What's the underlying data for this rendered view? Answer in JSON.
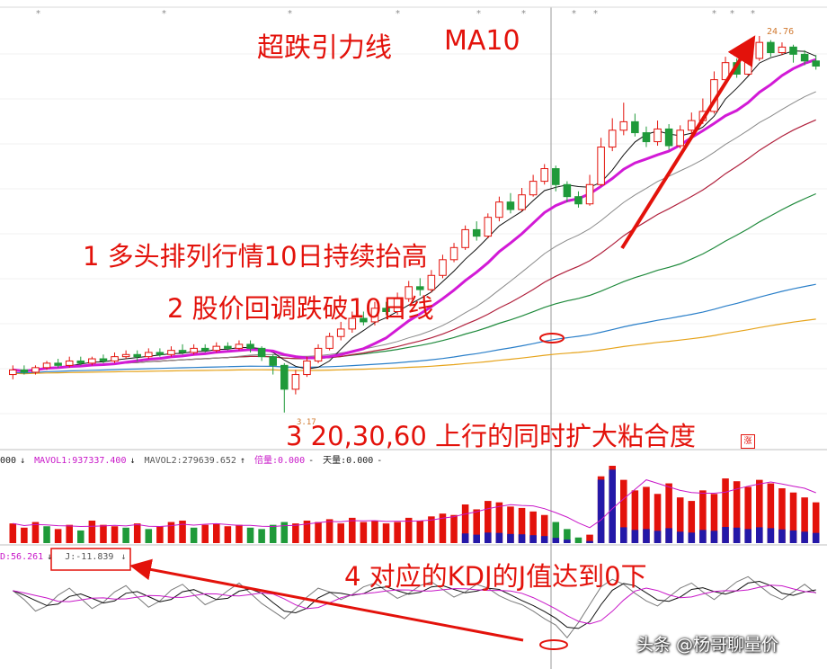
{
  "colors": {
    "up": "#e3120b",
    "down": "#1f9a3a",
    "ma5": "#111111",
    "ma10": "#d21ad6",
    "ma20": "#8a8a8a",
    "ma30": "#b0203c",
    "ma60": "#1f8a3c",
    "ma120": "#2a7fc9",
    "ma250": "#e6a31a",
    "vol_blue": "#2418a8",
    "annotation": "#e3120b"
  },
  "annotations": {
    "title": "超跌引力线",
    "ma": "MA10",
    "point1": "1 多头排列行情10日持续抬高",
    "point2": "2 股价回调跌破10日线",
    "point3": "3 20,30,60 上行的同时扩大粘合度",
    "point4": "4 对应的KDJ的J值达到0下"
  },
  "price_labels": {
    "high": "24.76",
    "low": "3.17"
  },
  "volume_indicator": {
    "first": "000",
    "mavol1": "MAVOL1:937337.400",
    "mavol2": "MAVOL2:279639.652",
    "beiliang": "倍量:0.000",
    "tianliang": "天量:0.000"
  },
  "kdj_indicator": {
    "d": "D:56.261",
    "j": "J:-11.839"
  },
  "watermark": "头条 @杨哥聊量价",
  "stamp": "涨",
  "chart_data": {
    "type": "candlestick",
    "panels": [
      "price",
      "volume",
      "kdj"
    ],
    "series_note": "daily candles with MA5, MA10, MA20, MA30, MA60, MA120, MA250 overlays",
    "candles": [
      {
        "o": 3.9,
        "c": 4.0,
        "h": 4.1,
        "l": 3.8
      },
      {
        "o": 4.0,
        "c": 3.95,
        "h": 4.1,
        "l": 3.9
      },
      {
        "o": 3.95,
        "c": 4.05,
        "h": 4.1,
        "l": 3.9
      },
      {
        "o": 4.05,
        "c": 4.15,
        "h": 4.2,
        "l": 4.0
      },
      {
        "o": 4.15,
        "c": 4.1,
        "h": 4.25,
        "l": 4.05
      },
      {
        "o": 4.1,
        "c": 4.2,
        "h": 4.3,
        "l": 4.05
      },
      {
        "o": 4.2,
        "c": 4.15,
        "h": 4.3,
        "l": 4.1
      },
      {
        "o": 4.15,
        "c": 4.25,
        "h": 4.3,
        "l": 4.1
      },
      {
        "o": 4.25,
        "c": 4.2,
        "h": 4.35,
        "l": 4.15
      },
      {
        "o": 4.2,
        "c": 4.3,
        "h": 4.4,
        "l": 4.15
      },
      {
        "o": 4.3,
        "c": 4.35,
        "h": 4.45,
        "l": 4.25
      },
      {
        "o": 4.35,
        "c": 4.3,
        "h": 4.45,
        "l": 4.2
      },
      {
        "o": 4.3,
        "c": 4.4,
        "h": 4.5,
        "l": 4.25
      },
      {
        "o": 4.4,
        "c": 4.35,
        "h": 4.5,
        "l": 4.3
      },
      {
        "o": 4.35,
        "c": 4.45,
        "h": 4.55,
        "l": 4.3
      },
      {
        "o": 4.45,
        "c": 4.4,
        "h": 4.6,
        "l": 4.35
      },
      {
        "o": 4.4,
        "c": 4.5,
        "h": 4.6,
        "l": 4.35
      },
      {
        "o": 4.5,
        "c": 4.45,
        "h": 4.6,
        "l": 4.4
      },
      {
        "o": 4.45,
        "c": 4.55,
        "h": 4.65,
        "l": 4.4
      },
      {
        "o": 4.55,
        "c": 4.5,
        "h": 4.65,
        "l": 4.45
      },
      {
        "o": 4.5,
        "c": 4.6,
        "h": 4.7,
        "l": 4.45
      },
      {
        "o": 4.6,
        "c": 4.5,
        "h": 4.7,
        "l": 4.4
      },
      {
        "o": 4.5,
        "c": 4.3,
        "h": 4.55,
        "l": 4.2
      },
      {
        "o": 4.3,
        "c": 4.1,
        "h": 4.35,
        "l": 3.9
      },
      {
        "o": 4.1,
        "c": 3.6,
        "h": 4.15,
        "l": 3.17
      },
      {
        "o": 3.6,
        "c": 3.9,
        "h": 4.0,
        "l": 3.5
      },
      {
        "o": 3.9,
        "c": 4.2,
        "h": 4.3,
        "l": 3.85
      },
      {
        "o": 4.2,
        "c": 4.5,
        "h": 4.6,
        "l": 4.15
      },
      {
        "o": 4.5,
        "c": 4.8,
        "h": 4.9,
        "l": 4.45
      },
      {
        "o": 4.8,
        "c": 5.0,
        "h": 5.2,
        "l": 4.7
      },
      {
        "o": 5.0,
        "c": 5.3,
        "h": 5.5,
        "l": 4.9
      },
      {
        "o": 5.3,
        "c": 5.2,
        "h": 5.5,
        "l": 5.1
      },
      {
        "o": 5.2,
        "c": 5.6,
        "h": 5.8,
        "l": 5.1
      },
      {
        "o": 5.6,
        "c": 5.5,
        "h": 5.8,
        "l": 5.4
      },
      {
        "o": 5.5,
        "c": 5.9,
        "h": 6.1,
        "l": 5.4
      },
      {
        "o": 5.9,
        "c": 6.3,
        "h": 6.5,
        "l": 5.8
      },
      {
        "o": 6.3,
        "c": 6.2,
        "h": 6.6,
        "l": 6.0
      },
      {
        "o": 6.2,
        "c": 6.7,
        "h": 6.9,
        "l": 6.1
      },
      {
        "o": 6.7,
        "c": 7.3,
        "h": 7.5,
        "l": 6.6
      },
      {
        "o": 7.3,
        "c": 7.8,
        "h": 8.0,
        "l": 7.2
      },
      {
        "o": 7.8,
        "c": 8.6,
        "h": 8.8,
        "l": 7.7
      },
      {
        "o": 8.6,
        "c": 8.3,
        "h": 9.0,
        "l": 8.1
      },
      {
        "o": 8.3,
        "c": 9.2,
        "h": 9.4,
        "l": 8.2
      },
      {
        "o": 9.2,
        "c": 10.0,
        "h": 10.3,
        "l": 9.0
      },
      {
        "o": 10.0,
        "c": 9.6,
        "h": 10.5,
        "l": 9.4
      },
      {
        "o": 9.6,
        "c": 10.4,
        "h": 10.8,
        "l": 9.5
      },
      {
        "o": 10.4,
        "c": 11.2,
        "h": 11.6,
        "l": 10.3
      },
      {
        "o": 11.2,
        "c": 12.0,
        "h": 12.3,
        "l": 11.0
      },
      {
        "o": 12.0,
        "c": 11.0,
        "h": 12.2,
        "l": 10.6
      },
      {
        "o": 11.0,
        "c": 10.3,
        "h": 11.2,
        "l": 10.0
      },
      {
        "o": 10.3,
        "c": 9.9,
        "h": 10.6,
        "l": 9.7
      },
      {
        "o": 9.9,
        "c": 11.0,
        "h": 11.6,
        "l": 9.8
      },
      {
        "o": 11.0,
        "c": 13.5,
        "h": 14.2,
        "l": 10.9
      },
      {
        "o": 13.5,
        "c": 14.8,
        "h": 15.8,
        "l": 13.2
      },
      {
        "o": 14.8,
        "c": 15.5,
        "h": 17.2,
        "l": 14.4
      },
      {
        "o": 15.5,
        "c": 14.6,
        "h": 16.2,
        "l": 14.3
      },
      {
        "o": 14.6,
        "c": 13.9,
        "h": 15.1,
        "l": 13.5
      },
      {
        "o": 13.9,
        "c": 14.9,
        "h": 15.6,
        "l": 13.6
      },
      {
        "o": 14.9,
        "c": 13.6,
        "h": 15.3,
        "l": 13.3
      },
      {
        "o": 13.6,
        "c": 14.8,
        "h": 15.2,
        "l": 13.4
      },
      {
        "o": 14.8,
        "c": 15.6,
        "h": 16.3,
        "l": 14.5
      },
      {
        "o": 15.6,
        "c": 16.4,
        "h": 17.6,
        "l": 15.3
      },
      {
        "o": 16.4,
        "c": 19.5,
        "h": 20.4,
        "l": 16.2
      },
      {
        "o": 19.5,
        "c": 21.4,
        "h": 22.1,
        "l": 19.3
      },
      {
        "o": 21.4,
        "c": 20.1,
        "h": 21.9,
        "l": 19.7
      },
      {
        "o": 20.1,
        "c": 21.9,
        "h": 22.6,
        "l": 19.9
      },
      {
        "o": 21.9,
        "c": 23.9,
        "h": 24.76,
        "l": 21.6
      },
      {
        "o": 23.9,
        "c": 22.6,
        "h": 24.2,
        "l": 22.1
      },
      {
        "o": 22.6,
        "c": 23.3,
        "h": 23.9,
        "l": 22.3
      },
      {
        "o": 23.3,
        "c": 22.4,
        "h": 23.6,
        "l": 21.4
      },
      {
        "o": 22.4,
        "c": 21.6,
        "h": 22.9,
        "l": 21.1
      },
      {
        "o": 21.6,
        "c": 21.0,
        "h": 22.3,
        "l": 20.6
      }
    ],
    "volume": [
      {
        "v": 28,
        "up": true
      },
      {
        "v": 22,
        "up": true
      },
      {
        "v": 30,
        "up": true
      },
      {
        "v": 24,
        "up": false
      },
      {
        "v": 20,
        "up": true
      },
      {
        "v": 26,
        "up": true
      },
      {
        "v": 18,
        "up": false
      },
      {
        "v": 32,
        "up": true
      },
      {
        "v": 26,
        "up": true
      },
      {
        "v": 24,
        "up": true
      },
      {
        "v": 22,
        "up": false
      },
      {
        "v": 28,
        "up": true
      },
      {
        "v": 20,
        "up": false
      },
      {
        "v": 24,
        "up": true
      },
      {
        "v": 30,
        "up": true
      },
      {
        "v": 32,
        "up": true
      },
      {
        "v": 22,
        "up": false
      },
      {
        "v": 26,
        "up": true
      },
      {
        "v": 28,
        "up": true
      },
      {
        "v": 24,
        "up": true
      },
      {
        "v": 26,
        "up": true
      },
      {
        "v": 22,
        "up": false
      },
      {
        "v": 20,
        "up": false
      },
      {
        "v": 26,
        "up": false
      },
      {
        "v": 30,
        "up": false
      },
      {
        "v": 28,
        "up": true
      },
      {
        "v": 32,
        "up": true
      },
      {
        "v": 30,
        "up": true
      },
      {
        "v": 34,
        "up": true
      },
      {
        "v": 28,
        "up": true
      },
      {
        "v": 36,
        "up": true
      },
      {
        "v": 30,
        "up": true
      },
      {
        "v": 32,
        "up": true
      },
      {
        "v": 28,
        "up": true
      },
      {
        "v": 30,
        "up": true
      },
      {
        "v": 36,
        "up": true
      },
      {
        "v": 32,
        "up": true
      },
      {
        "v": 38,
        "up": true
      },
      {
        "v": 42,
        "up": true
      },
      {
        "v": 40,
        "up": true
      },
      {
        "v": 55,
        "up": true
      },
      {
        "v": 48,
        "up": true
      },
      {
        "v": 60,
        "up": true
      },
      {
        "v": 58,
        "up": true
      },
      {
        "v": 52,
        "up": true
      },
      {
        "v": 50,
        "up": true
      },
      {
        "v": 45,
        "up": true
      },
      {
        "v": 40,
        "up": true
      },
      {
        "v": 30,
        "up": false
      },
      {
        "v": 20,
        "up": false
      },
      {
        "v": 8,
        "up": false
      },
      {
        "v": 12,
        "up": true
      },
      {
        "v": 95,
        "up": true
      },
      {
        "v": 110,
        "up": true
      },
      {
        "v": 90,
        "up": true
      },
      {
        "v": 75,
        "up": true
      },
      {
        "v": 80,
        "up": true
      },
      {
        "v": 70,
        "up": true
      },
      {
        "v": 85,
        "up": true
      },
      {
        "v": 65,
        "up": true
      },
      {
        "v": 60,
        "up": true
      },
      {
        "v": 75,
        "up": true
      },
      {
        "v": 70,
        "up": true
      },
      {
        "v": 92,
        "up": true
      },
      {
        "v": 88,
        "up": true
      },
      {
        "v": 80,
        "up": true
      },
      {
        "v": 90,
        "up": true
      },
      {
        "v": 85,
        "up": true
      },
      {
        "v": 78,
        "up": true
      },
      {
        "v": 72,
        "up": true
      },
      {
        "v": 65,
        "up": true
      },
      {
        "v": 58,
        "up": true
      }
    ],
    "kdj_j": [
      62,
      48,
      30,
      38,
      55,
      66,
      50,
      34,
      44,
      60,
      70,
      52,
      36,
      46,
      63,
      72,
      56,
      40,
      48,
      62,
      74,
      58,
      42,
      30,
      18,
      34,
      52,
      66,
      60,
      48,
      56,
      68,
      74,
      62,
      50,
      58,
      70,
      76,
      64,
      52,
      60,
      72,
      66,
      54,
      46,
      40,
      30,
      18,
      8,
      -11.839,
      12,
      40,
      68,
      80,
      72,
      58,
      46,
      38,
      52,
      66,
      74,
      60,
      48,
      62,
      76,
      84,
      70,
      56,
      48,
      60,
      72,
      58
    ]
  }
}
